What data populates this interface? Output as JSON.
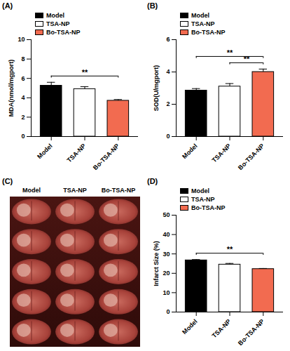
{
  "chart_data": [
    {
      "type": "bar",
      "title": "(A)",
      "ylabel": "MDA(nmol/mgport)",
      "categories": [
        "Model",
        "TSA-NP",
        "Bo-TSA-NP"
      ],
      "values": [
        5.25,
        4.9,
        3.7
      ],
      "errors": [
        0.35,
        0.25,
        0.12
      ],
      "colors": [
        "#000000",
        "#ffffff",
        "#f26b50"
      ],
      "ylim": [
        0,
        10
      ],
      "yticks": [
        0,
        2,
        4,
        6,
        8,
        10
      ],
      "grid": false,
      "legend": "top-left",
      "significance": [
        {
          "pair": [
            "Model",
            "Bo-TSA-NP"
          ],
          "label": "**"
        }
      ]
    },
    {
      "type": "bar",
      "title": "(B)",
      "ylabel": "SOD(U/mgport)",
      "categories": [
        "Model",
        "TSA-NP",
        "Bo-TSA-NP"
      ],
      "values": [
        2.85,
        3.1,
        4.0
      ],
      "errors": [
        0.12,
        0.18,
        0.18
      ],
      "colors": [
        "#000000",
        "#ffffff",
        "#f26b50"
      ],
      "ylim": [
        0,
        6
      ],
      "yticks": [
        0,
        2,
        4,
        6
      ],
      "grid": false,
      "legend": "top-left",
      "significance": [
        {
          "pair": [
            "Model",
            "Bo-TSA-NP"
          ],
          "label": "**"
        },
        {
          "pair": [
            "TSA-NP",
            "Bo-TSA-NP"
          ],
          "label": "**"
        }
      ]
    },
    {
      "type": "bar",
      "title": "(D)",
      "ylabel": "Infarct Size (%)",
      "categories": [
        "Model",
        "TSA-NP",
        "Bo-TSA-NP"
      ],
      "values": [
        26.7,
        24.5,
        22.2
      ],
      "errors": [
        0.4,
        0.6,
        0.3
      ],
      "colors": [
        "#000000",
        "#ffffff",
        "#f26b50"
      ],
      "ylim": [
        0,
        50
      ],
      "yticks": [
        0,
        10,
        20,
        30,
        40,
        50
      ],
      "grid": false,
      "legend": "top-left",
      "significance": [
        {
          "pair": [
            "Model",
            "Bo-TSA-NP"
          ],
          "label": "**"
        }
      ]
    }
  ],
  "image_panel": {
    "label": "(C)",
    "columns": [
      "Model",
      "TSA-NP",
      "Bo-TSA-NP"
    ],
    "rows": 5
  }
}
